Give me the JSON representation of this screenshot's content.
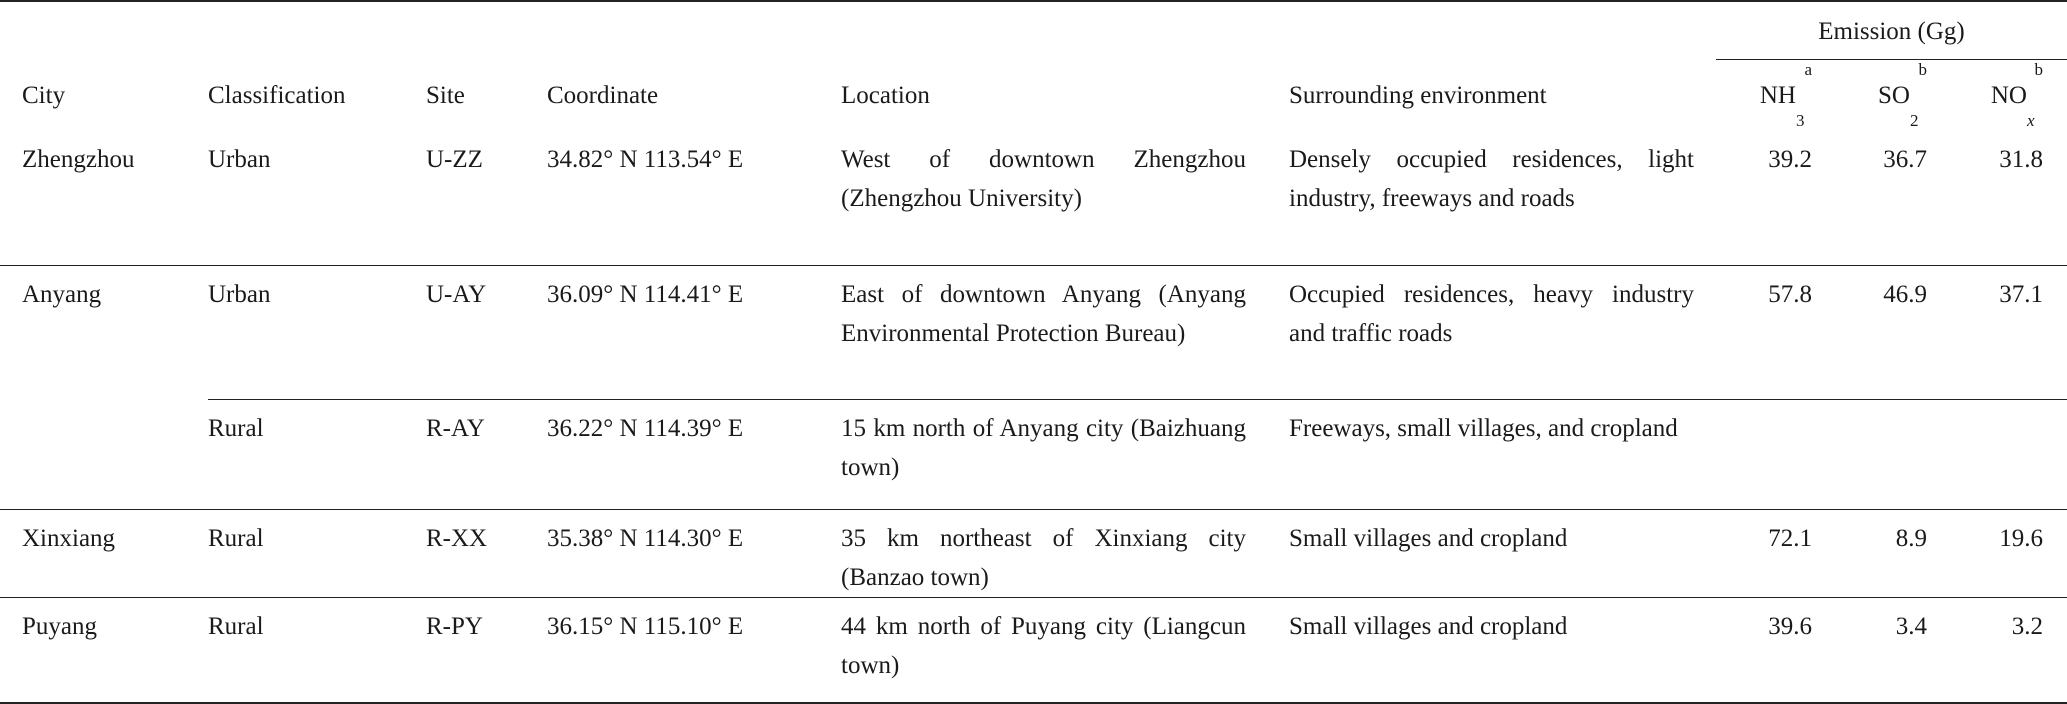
{
  "header": {
    "group": "Emission (Gg)",
    "columns": [
      "City",
      "Classification",
      "Site",
      "Coordinate",
      "Location",
      "Surrounding environment"
    ],
    "nh3": {
      "base": "NH",
      "sub": "3",
      "sup": "a"
    },
    "so2": {
      "base": "SO",
      "sub": "2",
      "sup": "b"
    },
    "nox": {
      "base": "NO",
      "sub": "x",
      "sup": "b"
    }
  },
  "rows": [
    {
      "city": "Zhengzhou",
      "classification": "Urban",
      "site": "U-ZZ",
      "coordinate": "34.82° N 113.54° E",
      "location": "West of downtown Zhengzhou (Zhengzhou University)",
      "environment": "Densely occupied residences, light industry, freeways and roads",
      "nh3": "39.2",
      "so2": "36.7",
      "nox": "31.8"
    },
    {
      "city": "Anyang",
      "classification": "Urban",
      "site": "U-AY",
      "coordinate": "36.09° N 114.41° E",
      "location": "East of downtown Anyang (Anyang Environmental Protection Bureau)",
      "environment": "Occupied residences, heavy industry and traffic roads",
      "nh3": "57.8",
      "so2": "46.9",
      "nox": "37.1"
    },
    {
      "city": "",
      "classification": "Rural",
      "site": "R-AY",
      "coordinate": "36.22° N 114.39° E",
      "location": "15 km north of Anyang city (Baizhuang town)",
      "environment": "Freeways, small villages, and cropland",
      "nh3": "",
      "so2": "",
      "nox": ""
    },
    {
      "city": "Xinxiang",
      "classification": "Rural",
      "site": "R-XX",
      "coordinate": "35.38° N 114.30° E",
      "location": "35 km northeast of Xinxiang city (Banzao town)",
      "environment": "Small villages and cropland",
      "nh3": "72.1",
      "so2": "8.9",
      "nox": "19.6"
    },
    {
      "city": "Puyang",
      "classification": "Rural",
      "site": "R-PY",
      "coordinate": "36.15° N 115.10° E",
      "location": "44 km north of Puyang city (Liangcun town)",
      "environment": "Small villages and cropland",
      "nh3": "39.6",
      "so2": "3.4",
      "nox": "3.2"
    }
  ]
}
